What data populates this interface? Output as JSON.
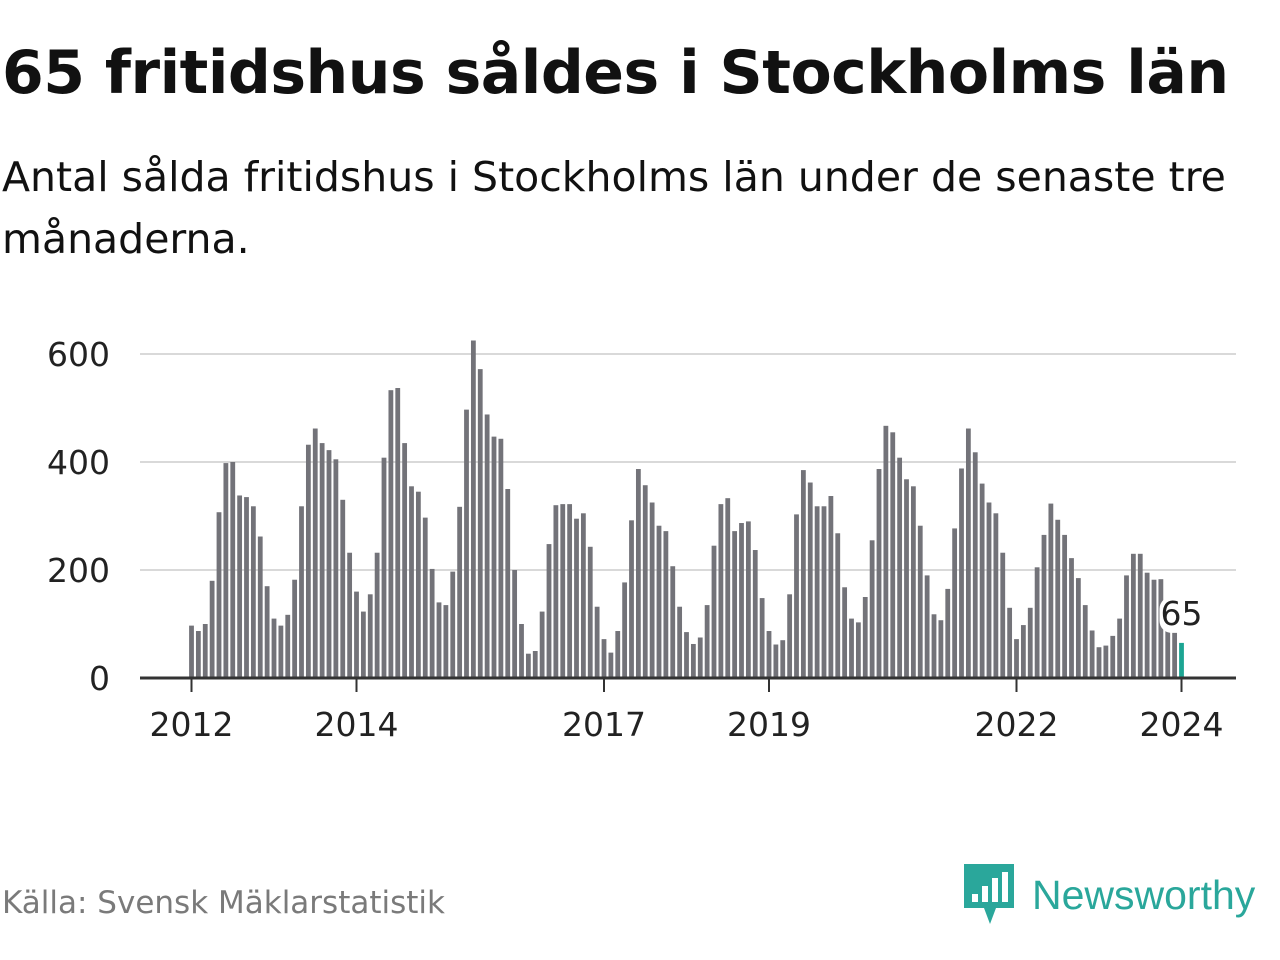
{
  "title": "65 fritidshus såldes i Stockholms län",
  "subtitle": "Antal sålda fritidshus i Stockholms län under de senaste tre månaderna.",
  "source": "Källa: Svensk Mäklarstatistik",
  "brand": {
    "name": "Newsworthy",
    "icon": "newsworthy-logo-icon",
    "color": "#2aa79b"
  },
  "chart_data": {
    "type": "bar",
    "title": "65 fritidshus såldes i Stockholms län",
    "subtitle": "Antal sålda fritidshus i Stockholms län under de senaste tre månaderna.",
    "ylim": [
      0,
      620
    ],
    "y_ticks": [
      "0",
      "200",
      "400",
      "600"
    ],
    "x_ticks": [
      "2012",
      "2014",
      "2017",
      "2019",
      "2022",
      "2024"
    ],
    "x_tick_positions": [
      0,
      24,
      60,
      84,
      120,
      144
    ],
    "grid": true,
    "bar_color": "#737379",
    "highlight_color": "#1ca593",
    "last_value_label": "65",
    "values": [
      97,
      87,
      100,
      180,
      307,
      398,
      400,
      338,
      335,
      318,
      262,
      170,
      110,
      97,
      117,
      182,
      318,
      432,
      462,
      435,
      422,
      405,
      330,
      232,
      160,
      123,
      155,
      232,
      408,
      533,
      537,
      435,
      355,
      345,
      297,
      202,
      140,
      135,
      197,
      317,
      497,
      625,
      572,
      488,
      447,
      443,
      350,
      200,
      100,
      45,
      50,
      123,
      248,
      320,
      322,
      322,
      295,
      305,
      243,
      132,
      72,
      47,
      87,
      177,
      292,
      387,
      357,
      325,
      282,
      272,
      207,
      132,
      85,
      63,
      75,
      135,
      245,
      322,
      333,
      272,
      287,
      290,
      237,
      148,
      87,
      62,
      70,
      155,
      303,
      385,
      362,
      318,
      318,
      337,
      268,
      168,
      110,
      103,
      150,
      255,
      387,
      467,
      455,
      408,
      368,
      355,
      282,
      190,
      118,
      107,
      165,
      277,
      388,
      462,
      418,
      360,
      325,
      305,
      232,
      130,
      72,
      98,
      130,
      205,
      265,
      323,
      293,
      265,
      222,
      185,
      135,
      88,
      57,
      60,
      78,
      110,
      190,
      230,
      230,
      195,
      182,
      183,
      120,
      87,
      65
    ]
  }
}
